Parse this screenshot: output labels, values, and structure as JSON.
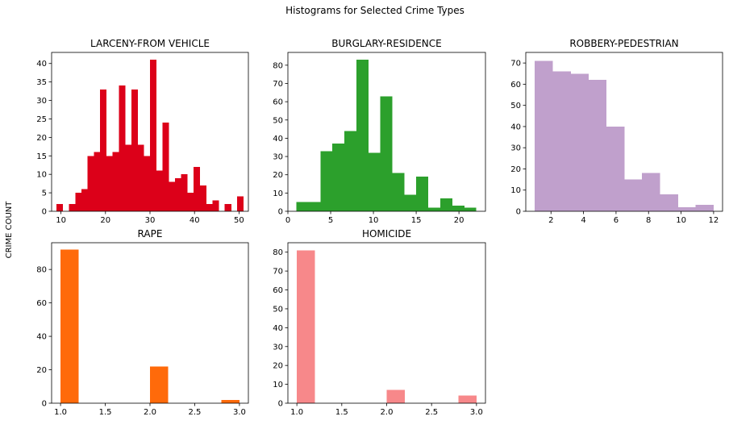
{
  "figure": {
    "suptitle": "Histograms for Selected Crime Types",
    "ylabel": "CRIME COUNT"
  },
  "chart_data": [
    {
      "type": "bar",
      "title": "LARCENY-FROM VEHICLE",
      "color": "#dc0019",
      "xlim": [
        7.9,
        52.1
      ],
      "ylim": [
        0,
        43
      ],
      "xticks": [
        10,
        20,
        30,
        40,
        50
      ],
      "yticks": [
        0,
        5,
        10,
        15,
        20,
        25,
        30,
        35,
        40
      ],
      "bin_start": 9,
      "bin_width": 1.4,
      "values": [
        2,
        0,
        2,
        5,
        6,
        15,
        16,
        33,
        15,
        16,
        34,
        18,
        33,
        18,
        15,
        41,
        11,
        24,
        8,
        9,
        10,
        5,
        12,
        7,
        2,
        3,
        0,
        2,
        0,
        4
      ]
    },
    {
      "type": "bar",
      "title": "BURGLARY-RESIDENCE",
      "color": "#2ca02c",
      "xlim": [
        0,
        23.1
      ],
      "ylim": [
        0,
        87
      ],
      "xticks": [
        0,
        5,
        10,
        15,
        20
      ],
      "yticks": [
        0,
        10,
        20,
        30,
        40,
        50,
        60,
        70,
        80
      ],
      "bin_start": 1,
      "bin_width": 1.4,
      "values": [
        5,
        5,
        33,
        37,
        44,
        83,
        32,
        63,
        21,
        9,
        19,
        2,
        7,
        3,
        2
      ]
    },
    {
      "type": "bar",
      "title": "ROBBERY-PEDESTRIAN",
      "color": "#c0a0cc",
      "xlim": [
        0.45,
        12.55
      ],
      "ylim": [
        0,
        75
      ],
      "xticks": [
        2,
        4,
        6,
        8,
        10,
        12
      ],
      "yticks": [
        0,
        10,
        20,
        30,
        40,
        50,
        60,
        70
      ],
      "bin_start": 1,
      "bin_width": 1.1,
      "values": [
        71,
        66,
        65,
        62,
        40,
        15,
        18,
        8,
        2,
        3
      ]
    },
    {
      "type": "bar",
      "title": "RAPE",
      "color": "#ff6a0a",
      "xlim": [
        0.9,
        3.1
      ],
      "ylim": [
        0,
        96
      ],
      "xticks": [
        "1.0",
        "1.5",
        "2.0",
        "2.5",
        "3.0"
      ],
      "yticks": [
        0,
        20,
        40,
        60,
        80
      ],
      "bin_start": 1,
      "bin_width": 0.2,
      "values": [
        92,
        0,
        0,
        0,
        0,
        22,
        0,
        0,
        0,
        2
      ]
    },
    {
      "type": "bar",
      "title": "HOMICIDE",
      "color": "#f7888a",
      "xlim": [
        0.9,
        3.1
      ],
      "ylim": [
        0,
        85
      ],
      "xticks": [
        "1.0",
        "1.5",
        "2.0",
        "2.5",
        "3.0"
      ],
      "yticks": [
        0,
        10,
        20,
        30,
        40,
        50,
        60,
        70,
        80
      ],
      "bin_start": 1,
      "bin_width": 0.2,
      "values": [
        81,
        0,
        0,
        0,
        0,
        7,
        0,
        0,
        0,
        4
      ]
    }
  ]
}
